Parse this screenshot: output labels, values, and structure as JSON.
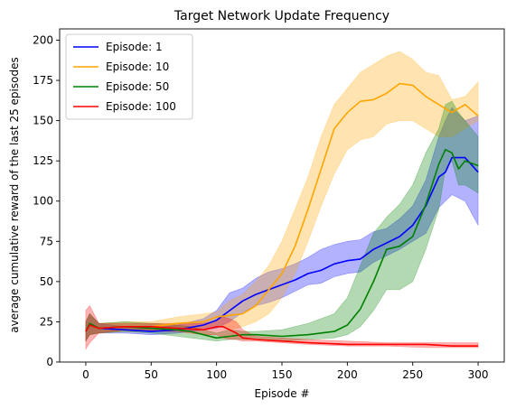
{
  "chart_data": {
    "type": "line",
    "title": "Target Network Update Frequency",
    "xlabel": "Episode #",
    "ylabel": "average cumulative reward of the last 25 episodes",
    "xlim": [
      -20,
      320
    ],
    "ylim": [
      0,
      207
    ],
    "xticks": [
      0,
      50,
      100,
      150,
      200,
      250,
      300
    ],
    "yticks": [
      0,
      25,
      50,
      75,
      100,
      125,
      150,
      175,
      200
    ],
    "grid": false,
    "legend_position": "top-left",
    "series": [
      {
        "name": "Episode: 1",
        "color": "#0000ff",
        "fill_alpha": 0.3,
        "x": [
          0,
          3,
          10,
          30,
          50,
          70,
          90,
          100,
          110,
          120,
          130,
          140,
          150,
          160,
          170,
          180,
          190,
          200,
          210,
          220,
          230,
          240,
          250,
          260,
          270,
          275,
          280,
          290,
          300
        ],
        "mean": [
          19,
          24,
          21,
          20,
          19,
          20,
          23,
          26,
          32,
          38,
          42,
          45,
          48,
          51,
          55,
          57,
          61,
          63,
          64,
          70,
          74,
          78,
          85,
          97,
          115,
          118,
          127,
          127,
          118
        ],
        "lower": [
          13,
          17,
          18,
          18,
          17,
          18,
          20,
          21,
          25,
          31,
          35,
          37,
          40,
          44,
          48,
          49,
          53,
          55,
          56,
          62,
          66,
          70,
          75,
          80,
          96,
          100,
          104,
          100,
          85
        ],
        "upper": [
          25,
          30,
          24,
          22,
          21,
          23,
          27,
          32,
          43,
          46,
          52,
          56,
          58,
          61,
          65,
          70,
          73,
          75,
          76,
          81,
          83,
          89,
          97,
          113,
          140,
          150,
          158,
          150,
          153
        ]
      },
      {
        "name": "Episode: 10",
        "color": "#ffa500",
        "fill_alpha": 0.3,
        "x": [
          0,
          3,
          10,
          30,
          50,
          70,
          90,
          100,
          110,
          120,
          130,
          140,
          150,
          160,
          170,
          180,
          190,
          200,
          210,
          220,
          230,
          240,
          250,
          260,
          270,
          280,
          290,
          300
        ],
        "mean": [
          19,
          24,
          21,
          22,
          22,
          24,
          25,
          28,
          29,
          30,
          35,
          45,
          55,
          72,
          95,
          120,
          145,
          155,
          162,
          163,
          167,
          173,
          172,
          165,
          160,
          155,
          160,
          153
        ],
        "lower": [
          13,
          17,
          18,
          19,
          19,
          20,
          21,
          23,
          20,
          22,
          25,
          30,
          40,
          55,
          75,
          97,
          117,
          132,
          138,
          140,
          148,
          150,
          150,
          145,
          140,
          140,
          145,
          150
        ],
        "upper": [
          25,
          30,
          24,
          25,
          25,
          28,
          30,
          31,
          38,
          42,
          50,
          60,
          75,
          95,
          115,
          140,
          160,
          170,
          180,
          185,
          190,
          193,
          188,
          180,
          178,
          163,
          165,
          174
        ]
      },
      {
        "name": "Episode: 50",
        "color": "#008000",
        "fill_alpha": 0.3,
        "x": [
          0,
          3,
          10,
          30,
          50,
          70,
          80,
          90,
          100,
          110,
          120,
          130,
          150,
          170,
          190,
          200,
          210,
          220,
          230,
          240,
          250,
          260,
          270,
          275,
          280,
          285,
          290,
          300
        ],
        "mean": [
          19,
          24,
          21,
          22,
          21,
          20,
          19,
          17,
          15,
          16,
          17,
          17,
          16,
          17,
          19,
          23,
          33,
          50,
          70,
          72,
          78,
          98,
          123,
          132,
          130,
          120,
          125,
          122
        ],
        "lower": [
          13,
          17,
          18,
          19,
          18,
          16,
          15,
          14,
          13,
          14,
          14,
          14,
          13,
          14,
          15,
          17,
          22,
          32,
          45,
          45,
          50,
          70,
          95,
          120,
          125,
          110,
          110,
          105
        ],
        "upper": [
          25,
          30,
          24,
          25,
          24,
          23,
          22,
          20,
          18,
          20,
          19,
          19,
          20,
          24,
          30,
          40,
          60,
          80,
          90,
          98,
          110,
          130,
          145,
          160,
          162,
          155,
          150,
          140
        ]
      },
      {
        "name": "Episode: 100",
        "color": "#ff0000",
        "fill_alpha": 0.3,
        "x": [
          0,
          3,
          10,
          30,
          50,
          70,
          90,
          100,
          105,
          110,
          115,
          120,
          130,
          150,
          170,
          200,
          230,
          260,
          280,
          300
        ],
        "mean": [
          19,
          23,
          21,
          22,
          22,
          21,
          20,
          22,
          22,
          20,
          18,
          15,
          14,
          13,
          12,
          11,
          11,
          11,
          10,
          10
        ],
        "lower": [
          8,
          12,
          18,
          20,
          19,
          19,
          17,
          17,
          15,
          14,
          14,
          13,
          13,
          12,
          11,
          10,
          10,
          9,
          9,
          9
        ],
        "upper": [
          32,
          35,
          24,
          24,
          24,
          24,
          24,
          26,
          28,
          27,
          25,
          20,
          16,
          15,
          14,
          13,
          12,
          12,
          12,
          12
        ]
      }
    ]
  }
}
